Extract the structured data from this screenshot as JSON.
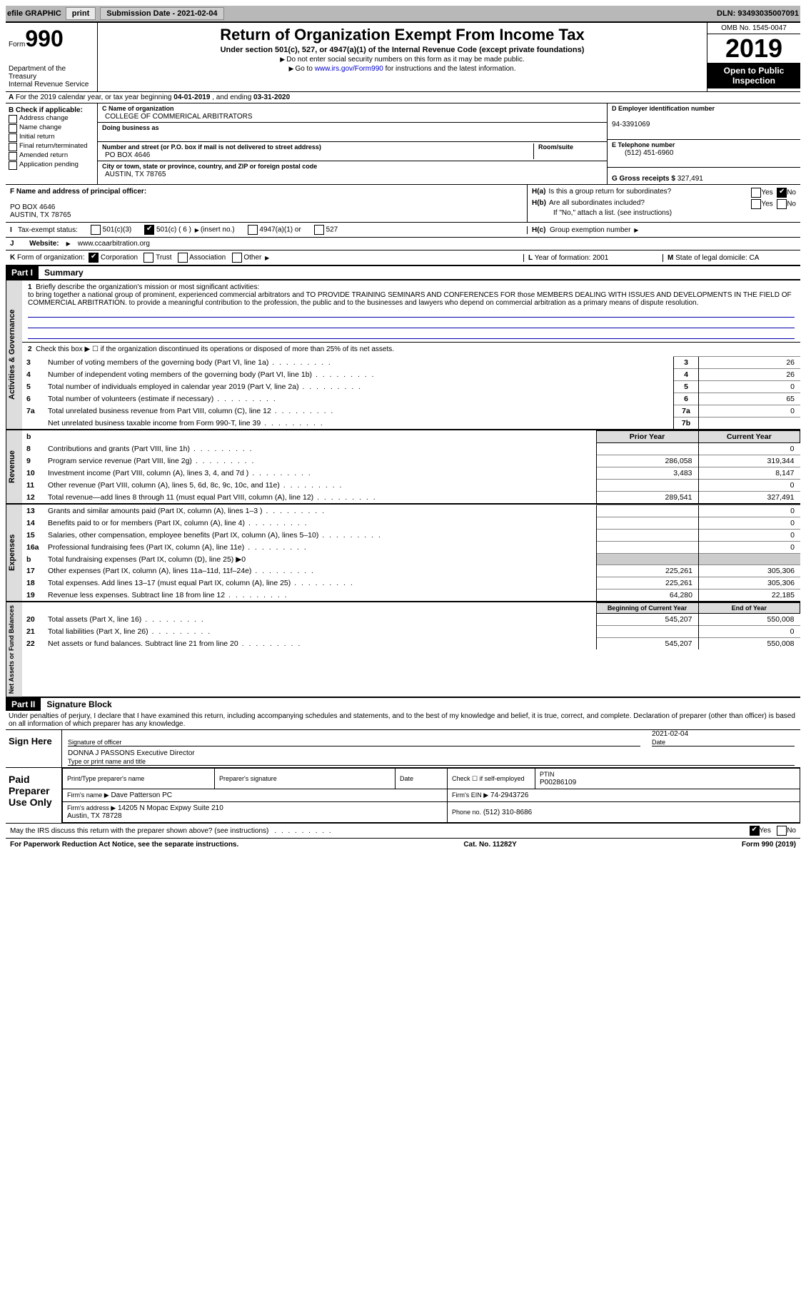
{
  "topbar": {
    "efile": "efile GRAPHIC",
    "print": "print",
    "submission_label": "Submission Date - ",
    "submission_date": "2021-02-04",
    "dln_label": "DLN: ",
    "dln": "93493035007091"
  },
  "header": {
    "form_label": "Form",
    "form_number": "990",
    "department": "Department of the Treasury\nInternal Revenue Service",
    "title": "Return of Organization Exempt From Income Tax",
    "subtitle": "Under section 501(c), 527, or 4947(a)(1) of the Internal Revenue Code (except private foundations)",
    "warn1": "Do not enter social security numbers on this form as it may be made public.",
    "warn2_pre": "Go to ",
    "warn2_link": "www.irs.gov/Form990",
    "warn2_post": " for instructions and the latest information.",
    "omb": "OMB No. 1545-0047",
    "year": "2019",
    "open_public": "Open to Public Inspection"
  },
  "rowA": {
    "text": "For the 2019 calendar year, or tax year beginning ",
    "begin": "04-01-2019",
    "mid": " , and ending ",
    "end": "03-31-2020"
  },
  "B": {
    "header": "Check if applicable:",
    "items": [
      "Address change",
      "Name change",
      "Initial return",
      "Final return/terminated",
      "Amended return",
      "Application pending"
    ]
  },
  "C": {
    "name_label": "C Name of organization",
    "name": "COLLEGE OF COMMERICAL ARBITRATORS",
    "dba_label": "Doing business as",
    "dba": "",
    "addr_label": "Number and street (or P.O. box if mail is not delivered to street address)",
    "room_label": "Room/suite",
    "addr": "PO BOX 4646",
    "city_label": "City or town, state or province, country, and ZIP or foreign postal code",
    "city": "AUSTIN, TX  78765"
  },
  "D": {
    "label": "D Employer identification number",
    "value": "94-3391069"
  },
  "E": {
    "label": "E Telephone number",
    "value": "(512) 451-6960"
  },
  "G": {
    "label": "G Gross receipts $ ",
    "value": "327,491"
  },
  "F": {
    "label": "F  Name and address of principal officer:",
    "line1": "PO BOX 4646",
    "line2": "AUSTIN, TX  78765"
  },
  "H": {
    "a": "Is this a group return for subordinates?",
    "b": "Are all subordinates included?",
    "b_note": "If \"No,\" attach a list. (see instructions)",
    "c": "Group exemption number ",
    "yes": "Yes",
    "no": "No",
    "ha": "H(a)",
    "hb": "H(b)",
    "hc": "H(c)"
  },
  "I": {
    "label": "Tax-exempt status:",
    "opt1": "501(c)(3)",
    "opt2": "501(c) ( 6 )",
    "opt2b": "(insert no.)",
    "opt3": "4947(a)(1) or",
    "opt4": "527"
  },
  "J": {
    "label": "Website:",
    "value": "www.ccaarbitration.org"
  },
  "K": {
    "label": "Form of organization:",
    "corp": "Corporation",
    "trust": "Trust",
    "assoc": "Association",
    "other": "Other"
  },
  "L": {
    "label": "Year of formation: ",
    "value": "2001"
  },
  "M": {
    "label": "State of legal domicile: ",
    "value": "CA"
  },
  "partI": {
    "label": "Part I",
    "title": "Summary",
    "line1_label": "Briefly describe the organization's mission or most significant activities:",
    "mission": "to bring together a national group of prominent, experienced commercial arbitrators and TO PROVIDE TRAINING SEMINARS AND CONFERENCES FOR those MEMBERS DEALING WITH ISSUES AND DEVELOPMENTS IN THE FIELD OF COMMERCIAL ARBITRATION. to provide a meaningful contribution to the profession, the public and to the businesses and lawyers who depend on commercial arbitration as a primary means of dispute resolution.",
    "line2": "Check this box ▶ ☐  if the organization discontinued its operations or disposed of more than 25% of its net assets.",
    "prior_year": "Prior Year",
    "current_year": "Current Year",
    "begin_cy": "Beginning of Current Year",
    "end_y": "End of Year",
    "vert1": "Activities & Governance",
    "vert2": "Revenue",
    "vert3": "Expenses",
    "vert4": "Net Assets or Fund Balances",
    "rows_gov": [
      {
        "n": "3",
        "d": "Number of voting members of the governing body (Part VI, line 1a)",
        "bn": "3",
        "bv": "26"
      },
      {
        "n": "4",
        "d": "Number of independent voting members of the governing body (Part VI, line 1b)",
        "bn": "4",
        "bv": "26"
      },
      {
        "n": "5",
        "d": "Total number of individuals employed in calendar year 2019 (Part V, line 2a)",
        "bn": "5",
        "bv": "0"
      },
      {
        "n": "6",
        "d": "Total number of volunteers (estimate if necessary)",
        "bn": "6",
        "bv": "65"
      },
      {
        "n": "7a",
        "d": "Total unrelated business revenue from Part VIII, column (C), line 12",
        "bn": "7a",
        "bv": "0"
      },
      {
        "n": "",
        "d": "Net unrelated business taxable income from Form 990-T, line 39",
        "bn": "7b",
        "bv": ""
      }
    ],
    "rows_rev": [
      {
        "n": "8",
        "d": "Contributions and grants (Part VIII, line 1h)",
        "py": "",
        "cy": "0"
      },
      {
        "n": "9",
        "d": "Program service revenue (Part VIII, line 2g)",
        "py": "286,058",
        "cy": "319,344"
      },
      {
        "n": "10",
        "d": "Investment income (Part VIII, column (A), lines 3, 4, and 7d )",
        "py": "3,483",
        "cy": "8,147"
      },
      {
        "n": "11",
        "d": "Other revenue (Part VIII, column (A), lines 5, 6d, 8c, 9c, 10c, and 11e)",
        "py": "",
        "cy": "0"
      },
      {
        "n": "12",
        "d": "Total revenue—add lines 8 through 11 (must equal Part VIII, column (A), line 12)",
        "py": "289,541",
        "cy": "327,491"
      }
    ],
    "rows_exp": [
      {
        "n": "13",
        "d": "Grants and similar amounts paid (Part IX, column (A), lines 1–3 )",
        "py": "",
        "cy": "0"
      },
      {
        "n": "14",
        "d": "Benefits paid to or for members (Part IX, column (A), line 4)",
        "py": "",
        "cy": "0"
      },
      {
        "n": "15",
        "d": "Salaries, other compensation, employee benefits (Part IX, column (A), lines 5–10)",
        "py": "",
        "cy": "0"
      },
      {
        "n": "16a",
        "d": "Professional fundraising fees (Part IX, column (A), line 11e)",
        "py": "",
        "cy": "0"
      },
      {
        "n": "b",
        "d": "Total fundraising expenses (Part IX, column (D), line 25) ▶0",
        "py": "-",
        "cy": "-"
      },
      {
        "n": "17",
        "d": "Other expenses (Part IX, column (A), lines 11a–11d, 11f–24e)",
        "py": "225,261",
        "cy": "305,306"
      },
      {
        "n": "18",
        "d": "Total expenses. Add lines 13–17 (must equal Part IX, column (A), line 25)",
        "py": "225,261",
        "cy": "305,306"
      },
      {
        "n": "19",
        "d": "Revenue less expenses. Subtract line 18 from line 12",
        "py": "64,280",
        "cy": "22,185"
      }
    ],
    "rows_net": [
      {
        "n": "20",
        "d": "Total assets (Part X, line 16)",
        "py": "545,207",
        "cy": "550,008"
      },
      {
        "n": "21",
        "d": "Total liabilities (Part X, line 26)",
        "py": "",
        "cy": "0"
      },
      {
        "n": "22",
        "d": "Net assets or fund balances. Subtract line 21 from line 20",
        "py": "545,207",
        "cy": "550,008"
      }
    ]
  },
  "partII": {
    "label": "Part II",
    "title": "Signature Block",
    "penalty": "Under penalties of perjury, I declare that I have examined this return, including accompanying schedules and statements, and to the best of my knowledge and belief, it is true, correct, and complete. Declaration of preparer (other than officer) is based on all information of which preparer has any knowledge.",
    "sign_here": "Sign Here",
    "sig_officer": "Signature of officer",
    "sig_date": "2021-02-04",
    "date_lbl": "Date",
    "officer_name": "DONNA J PASSONS Executive Director",
    "name_lbl": "Type or print name and title",
    "paid": "Paid Preparer Use Only",
    "pp_name_lbl": "Print/Type preparer's name",
    "pp_sig_lbl": "Preparer's signature",
    "pp_date_lbl": "Date",
    "pp_check": "Check ☐ if self-employed",
    "ptin_lbl": "PTIN",
    "ptin": "P00286109",
    "firm_name_lbl": "Firm's name    ▶",
    "firm_name": "Dave Patterson PC",
    "firm_ein_lbl": "Firm's EIN ▶",
    "firm_ein": "74-2943726",
    "firm_addr_lbl": "Firm's address ▶",
    "firm_addr": "14205 N Mopac Expwy Suite 210\nAustin, TX  78728",
    "phone_lbl": "Phone no.",
    "phone": "(512) 310-8686",
    "may_discuss": "May the IRS discuss this return with the preparer shown above? (see instructions)",
    "yes": "Yes",
    "no": "No"
  },
  "footer": {
    "pra": "For Paperwork Reduction Act Notice, see the separate instructions.",
    "cat": "Cat. No. 11282Y",
    "form": "Form 990 (2019)"
  }
}
